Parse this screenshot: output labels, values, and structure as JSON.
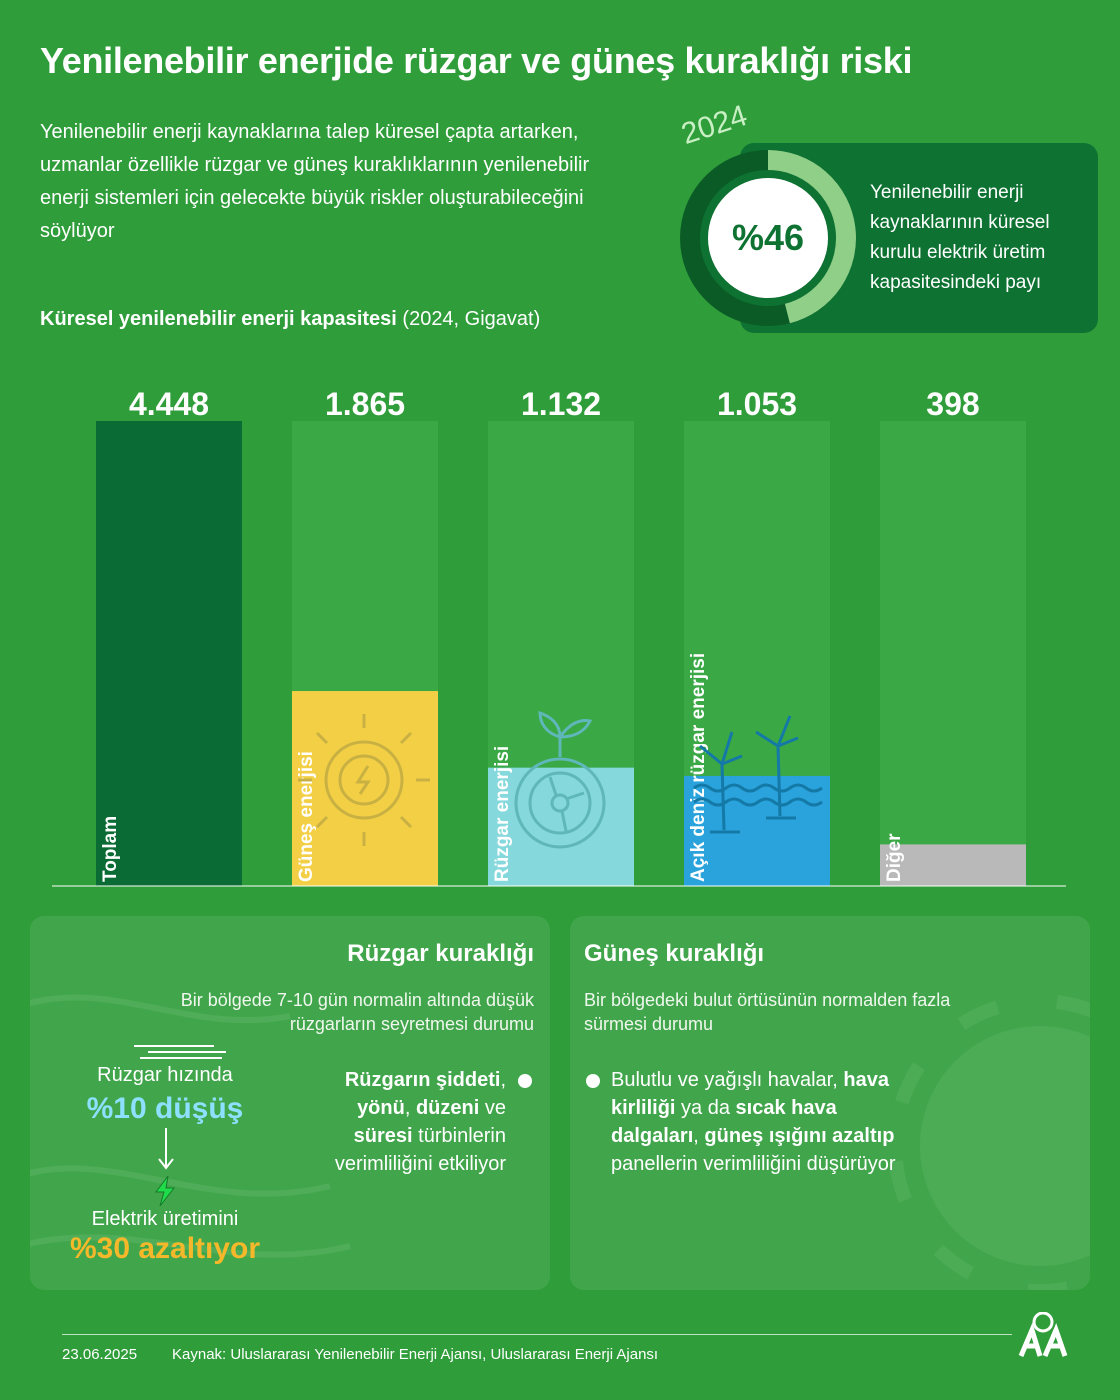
{
  "title": "Yenilenebilir enerjide rüzgar ve güneş kuraklığı riski",
  "intro": "Yenilenebilir enerji kaynaklarına talep küresel çapta artarken, uzmanlar özellikle rüzgar ve güneş kuraklıklarının yenilenebilir enerji sistemleri için gelecekte büyük riskler oluşturabileceğini söylüyor",
  "share": {
    "year": "2024",
    "value_label": "%46",
    "fraction": 0.46,
    "text": "Yenilenebilir enerji kaynaklarının küresel kurulu elektrik üretim kapasitesindeki payı"
  },
  "chart_title": {
    "main": "Küresel yenilenebilir enerji kapasitesi",
    "unit": "(2024, Gigavat)"
  },
  "chart_data": {
    "type": "bar",
    "title": "Küresel yenilenebilir enerji kapasitesi",
    "subtitle": "(2024, Gigavat)",
    "categories": [
      "Toplam",
      "Güneş enerjisi",
      "Rüzgar enerjisi",
      "Açık deniz rüzgar enerjisi",
      "Diğer"
    ],
    "values": [
      4448,
      1865,
      1132,
      1053,
      398
    ],
    "value_labels": [
      "4.448",
      "1.865",
      "1.132",
      "1.053",
      "398"
    ],
    "ylim": [
      0,
      4448
    ],
    "colors": [
      "#0b6b34",
      "#f2cf45",
      "#85d8dc",
      "#2aa3dc",
      "#b9b9b9"
    ],
    "track_color": "#3aa845",
    "grid": false
  },
  "wind_panel": {
    "title": "Rüzgar kuraklığı",
    "definition_1": "Bir bölgede 7-10 gün normalin altında düşük",
    "definition_2": "rüzgarların seyretmesi durumu",
    "stat1_label": "Rüzgar hızında",
    "stat1_value": "%10 düşüş",
    "stat2_label": "Elektrik üretimini",
    "stat2_value": "%30 azaltıyor",
    "bullet": {
      "b1": "Rüzgarın şiddeti",
      "t1": ",",
      "b2": "yönü",
      "t2": ", ",
      "b3": "düzeni",
      "t3": " ve",
      "b4": "süresi",
      "t4": " türbinlerin",
      "t5": "verimliliğini etkiliyor"
    }
  },
  "solar_panel": {
    "title": "Güneş kuraklığı",
    "definition_1": "Bir bölgedeki bulut örtüsünün normalden fazla",
    "definition_2": "sürmesi durumu",
    "bullet": {
      "t1": "Bulutlu ve yağışlı havalar, ",
      "b1": "hava",
      "b2": "kirliliği",
      "t2": " ya da ",
      "b3": "sıcak hava",
      "b4": "dalgaları",
      "t3": ", ",
      "b5": "güneş ışığını azaltıp",
      "t4": "panellerin verimliliğini düşürüyor"
    }
  },
  "footer": {
    "date": "23.06.2025",
    "source": "Kaynak: Uluslararası Yenilenebilir Enerji Ajansı, Uluslararası Enerji Ajansı"
  }
}
